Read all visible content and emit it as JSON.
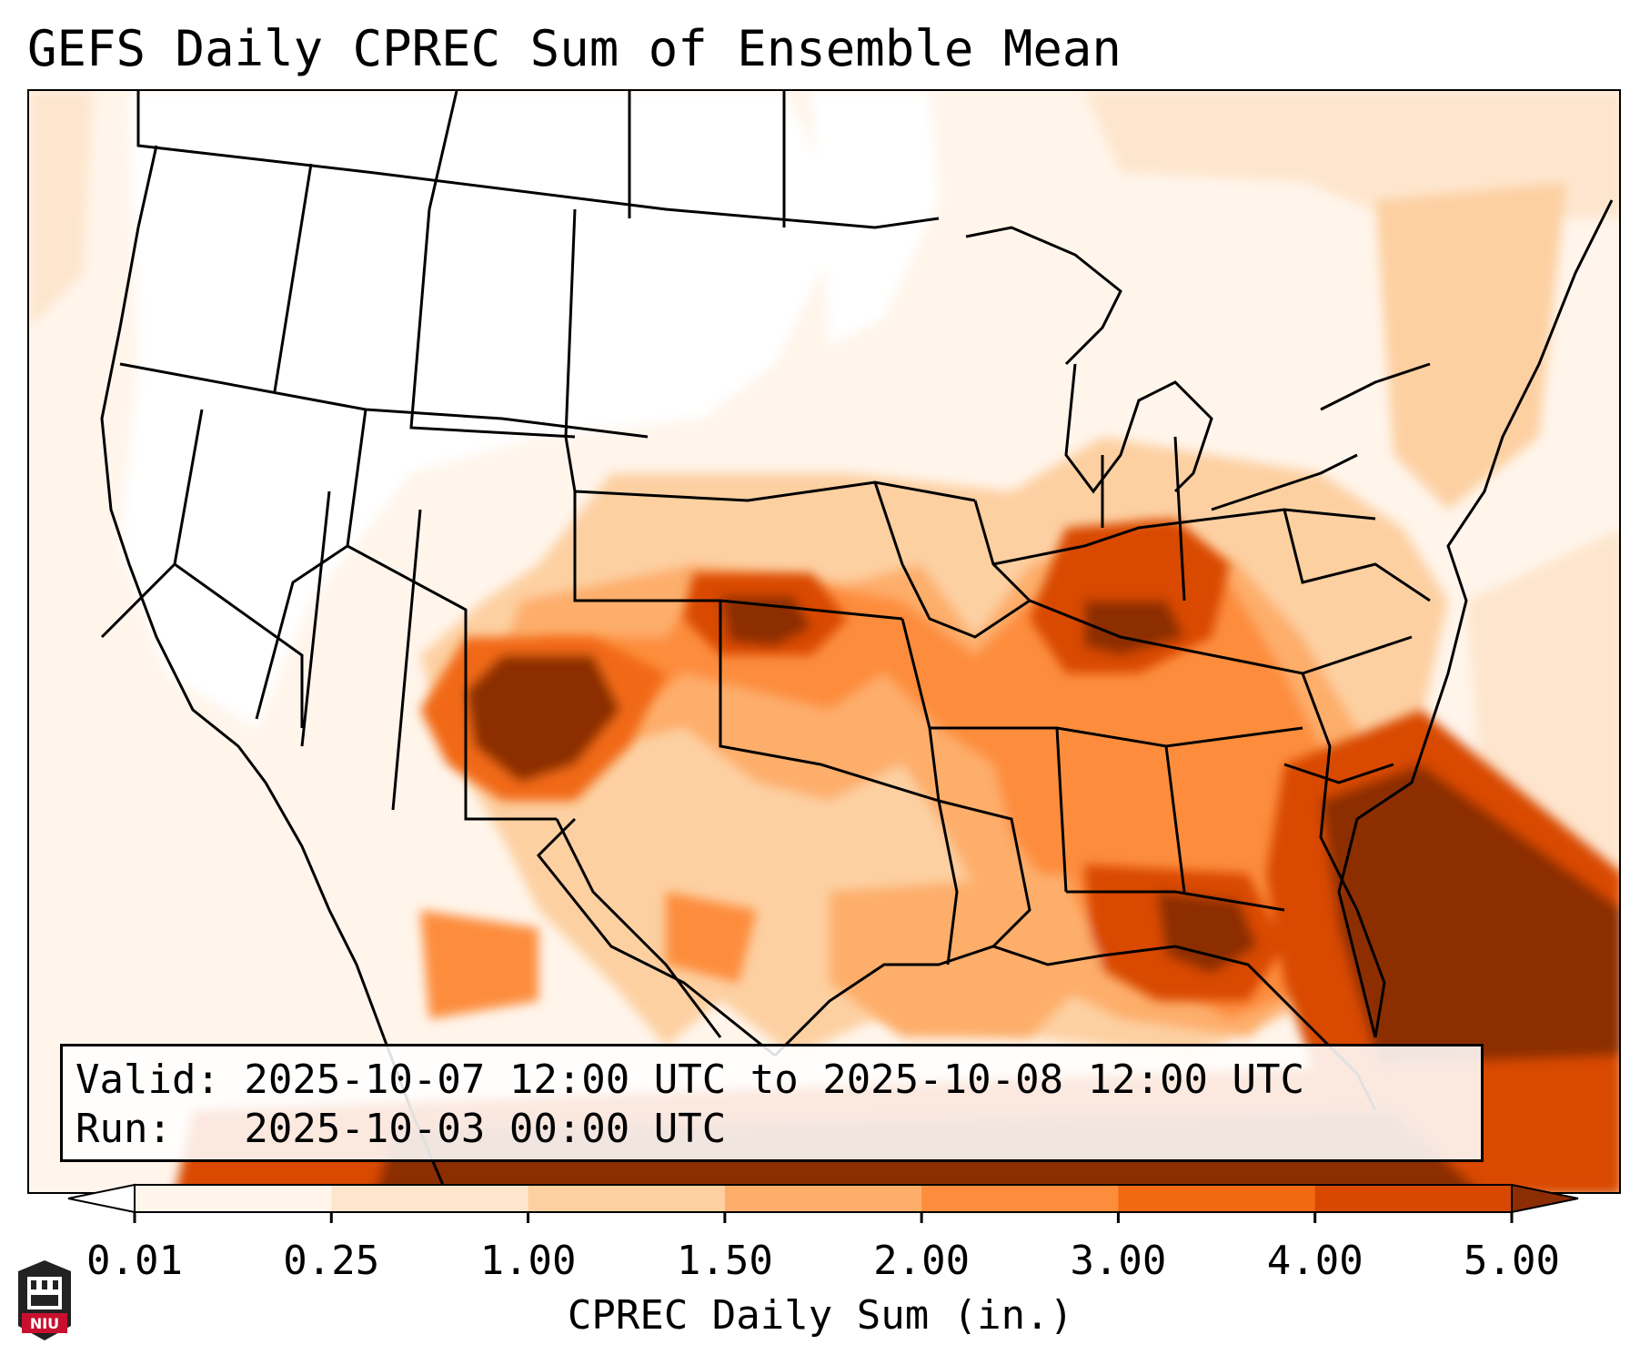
{
  "title": "GEFS Daily CPREC Sum of Ensemble Mean",
  "info": {
    "valid_line": "Valid: 2025-10-07 12:00 UTC to 2025-10-08 12:00 UTC",
    "run_line": "Run:   2025-10-03 00:00 UTC"
  },
  "colorbar": {
    "label": "CPREC Daily Sum (in.)",
    "ticks": [
      "0.01",
      "0.25",
      "1.00",
      "1.50",
      "2.00",
      "3.00",
      "4.00",
      "5.00"
    ],
    "colors": [
      "#fff5eb",
      "#fee6ce",
      "#fdd0a2",
      "#fdae6b",
      "#fd8d3c",
      "#f16913",
      "#d94801",
      "#8c2d04"
    ],
    "under_color": "#ffffff",
    "over_color": "#8c2d04"
  },
  "map": {
    "region": "contiguous-united-states",
    "line_color": "#000000",
    "precip_blobs": [
      {
        "area": "new-mexico-colorado",
        "level": 7
      },
      {
        "area": "southern-kansas",
        "level": 7
      },
      {
        "area": "ohio-valley",
        "level": 6
      },
      {
        "area": "southeast-coast-atlantic",
        "level": 7
      },
      {
        "area": "gulf-coast",
        "level": 5
      }
    ],
    "logo": "niu-logo"
  }
}
